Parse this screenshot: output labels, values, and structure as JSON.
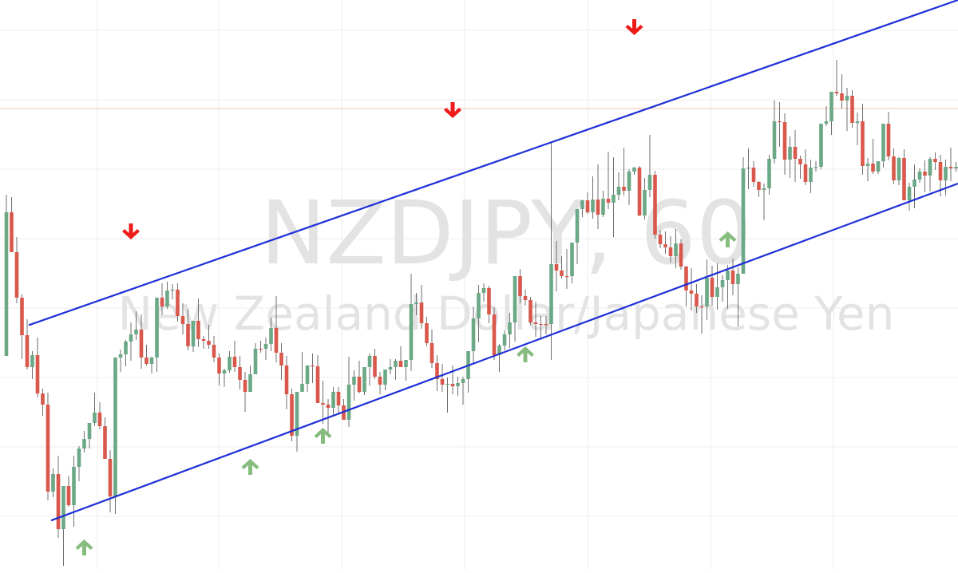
{
  "watermark": {
    "symbol_line": "NZDJPY, 60",
    "name_line": "New Zealand Dollar/Japanese Yen"
  },
  "chart_data": {
    "type": "candlestick",
    "symbol": "NZDJPY",
    "interval": "60",
    "grid": true,
    "colors": {
      "up": "#6aa886",
      "down": "#d9574b",
      "wick": "#6f6f6f",
      "channel": "#1f2fd6",
      "arrow_down": "#ee1b1b",
      "arrow_up": "#86bd7e",
      "price_line": "#f2c3b3",
      "grid": "#eeeeee",
      "watermark": "#e3e3e3"
    },
    "price_range": [
      0,
      714
    ],
    "bars": [
      {
        "o": 446,
        "h": 244,
        "l": 433,
        "c": 266
      },
      {
        "o": 266,
        "h": 247,
        "l": 316,
        "c": 316
      },
      {
        "o": 316,
        "h": 297,
        "l": 380,
        "c": 373
      },
      {
        "o": 373,
        "h": 369,
        "l": 450,
        "c": 420
      },
      {
        "o": 420,
        "h": 400,
        "l": 463,
        "c": 460
      },
      {
        "o": 460,
        "h": 440,
        "l": 475,
        "c": 445
      },
      {
        "o": 445,
        "h": 423,
        "l": 498,
        "c": 493
      },
      {
        "o": 493,
        "h": 487,
        "l": 521,
        "c": 507
      },
      {
        "o": 507,
        "h": 492,
        "l": 627,
        "c": 616
      },
      {
        "o": 616,
        "h": 587,
        "l": 623,
        "c": 594
      },
      {
        "o": 594,
        "h": 571,
        "l": 674,
        "c": 663
      },
      {
        "o": 663,
        "h": 648,
        "l": 709,
        "c": 609
      },
      {
        "o": 609,
        "h": 596,
        "l": 635,
        "c": 633
      },
      {
        "o": 633,
        "h": 571,
        "l": 660,
        "c": 585
      },
      {
        "o": 585,
        "h": 559,
        "l": 603,
        "c": 562
      },
      {
        "o": 562,
        "h": 540,
        "l": 567,
        "c": 550
      },
      {
        "o": 550,
        "h": 539,
        "l": 562,
        "c": 530
      },
      {
        "o": 530,
        "h": 492,
        "l": 534,
        "c": 517
      },
      {
        "o": 517,
        "h": 504,
        "l": 538,
        "c": 534
      },
      {
        "o": 534,
        "h": 523,
        "l": 573,
        "c": 575
      },
      {
        "o": 575,
        "h": 564,
        "l": 642,
        "c": 622
      },
      {
        "o": 622,
        "h": 565,
        "l": 644,
        "c": 448
      },
      {
        "o": 448,
        "h": 438,
        "l": 466,
        "c": 444
      },
      {
        "o": 444,
        "h": 426,
        "l": 459,
        "c": 428
      },
      {
        "o": 428,
        "h": 404,
        "l": 452,
        "c": 419
      },
      {
        "o": 419,
        "h": 390,
        "l": 426,
        "c": 413
      },
      {
        "o": 413,
        "h": 394,
        "l": 462,
        "c": 448
      },
      {
        "o": 448,
        "h": 432,
        "l": 458,
        "c": 456
      },
      {
        "o": 456,
        "h": 447,
        "l": 468,
        "c": 448
      },
      {
        "o": 448,
        "h": 375,
        "l": 466,
        "c": 373
      },
      {
        "o": 373,
        "h": 355,
        "l": 395,
        "c": 384
      },
      {
        "o": 384,
        "h": 353,
        "l": 387,
        "c": 364
      },
      {
        "o": 364,
        "h": 356,
        "l": 375,
        "c": 363
      },
      {
        "o": 363,
        "h": 355,
        "l": 403,
        "c": 396
      },
      {
        "o": 396,
        "h": 380,
        "l": 419,
        "c": 406
      },
      {
        "o": 406,
        "h": 387,
        "l": 439,
        "c": 434
      },
      {
        "o": 434,
        "h": 402,
        "l": 441,
        "c": 402
      },
      {
        "o": 402,
        "h": 374,
        "l": 435,
        "c": 425
      },
      {
        "o": 425,
        "h": 421,
        "l": 437,
        "c": 427
      },
      {
        "o": 427,
        "h": 407,
        "l": 437,
        "c": 432
      },
      {
        "o": 432,
        "h": 421,
        "l": 454,
        "c": 448
      },
      {
        "o": 448,
        "h": 443,
        "l": 483,
        "c": 468
      },
      {
        "o": 468,
        "h": 462,
        "l": 485,
        "c": 464
      },
      {
        "o": 464,
        "h": 440,
        "l": 467,
        "c": 447
      },
      {
        "o": 447,
        "h": 427,
        "l": 466,
        "c": 460
      },
      {
        "o": 460,
        "h": 446,
        "l": 488,
        "c": 476
      },
      {
        "o": 476,
        "h": 466,
        "l": 516,
        "c": 491
      },
      {
        "o": 491,
        "h": 458,
        "l": 491,
        "c": 469
      },
      {
        "o": 469,
        "h": 430,
        "l": 468,
        "c": 437
      },
      {
        "o": 437,
        "h": 427,
        "l": 442,
        "c": 437
      },
      {
        "o": 437,
        "h": 423,
        "l": 451,
        "c": 431
      },
      {
        "o": 431,
        "h": 398,
        "l": 440,
        "c": 411
      },
      {
        "o": 411,
        "h": 371,
        "l": 454,
        "c": 442
      },
      {
        "o": 442,
        "h": 430,
        "l": 476,
        "c": 458
      },
      {
        "o": 458,
        "h": 446,
        "l": 513,
        "c": 494
      },
      {
        "o": 494,
        "h": 487,
        "l": 553,
        "c": 546
      },
      {
        "o": 546,
        "h": 493,
        "l": 566,
        "c": 491
      },
      {
        "o": 491,
        "h": 441,
        "l": 491,
        "c": 481
      },
      {
        "o": 481,
        "h": 466,
        "l": 491,
        "c": 458
      },
      {
        "o": 458,
        "h": 443,
        "l": 480,
        "c": 459
      },
      {
        "o": 459,
        "h": 445,
        "l": 505,
        "c": 505
      },
      {
        "o": 505,
        "h": 477,
        "l": 531,
        "c": 507
      },
      {
        "o": 507,
        "h": 500,
        "l": 543,
        "c": 511
      },
      {
        "o": 511,
        "h": 485,
        "l": 521,
        "c": 491
      },
      {
        "o": 491,
        "h": 485,
        "l": 519,
        "c": 508
      },
      {
        "o": 508,
        "h": 500,
        "l": 526,
        "c": 526
      },
      {
        "o": 526,
        "h": 447,
        "l": 535,
        "c": 482
      },
      {
        "o": 482,
        "h": 464,
        "l": 502,
        "c": 472
      },
      {
        "o": 472,
        "h": 452,
        "l": 493,
        "c": 491
      },
      {
        "o": 491,
        "h": 466,
        "l": 495,
        "c": 460
      },
      {
        "o": 460,
        "h": 443,
        "l": 483,
        "c": 446
      },
      {
        "o": 446,
        "h": 437,
        "l": 475,
        "c": 472
      },
      {
        "o": 472,
        "h": 466,
        "l": 494,
        "c": 482
      },
      {
        "o": 482,
        "h": 478,
        "l": 489,
        "c": 463
      },
      {
        "o": 463,
        "h": 450,
        "l": 469,
        "c": 460
      },
      {
        "o": 460,
        "h": 450,
        "l": 476,
        "c": 452
      },
      {
        "o": 452,
        "h": 434,
        "l": 459,
        "c": 460
      },
      {
        "o": 460,
        "h": 455,
        "l": 477,
        "c": 451
      },
      {
        "o": 451,
        "h": 343,
        "l": 465,
        "c": 381
      },
      {
        "o": 381,
        "h": 367,
        "l": 395,
        "c": 379
      },
      {
        "o": 379,
        "h": 357,
        "l": 412,
        "c": 405
      },
      {
        "o": 405,
        "h": 397,
        "l": 434,
        "c": 430
      },
      {
        "o": 430,
        "h": 413,
        "l": 461,
        "c": 455
      },
      {
        "o": 455,
        "h": 445,
        "l": 490,
        "c": 475
      },
      {
        "o": 475,
        "h": 456,
        "l": 491,
        "c": 482
      },
      {
        "o": 482,
        "h": 473,
        "l": 517,
        "c": 481
      },
      {
        "o": 481,
        "h": 458,
        "l": 494,
        "c": 484
      },
      {
        "o": 484,
        "h": 472,
        "l": 496,
        "c": 480
      },
      {
        "o": 480,
        "h": 472,
        "l": 507,
        "c": 475
      },
      {
        "o": 475,
        "h": 460,
        "l": 492,
        "c": 440
      },
      {
        "o": 440,
        "h": 384,
        "l": 455,
        "c": 399
      },
      {
        "o": 399,
        "h": 357,
        "l": 429,
        "c": 367
      },
      {
        "o": 367,
        "h": 355,
        "l": 378,
        "c": 361
      },
      {
        "o": 361,
        "h": 358,
        "l": 405,
        "c": 394
      },
      {
        "o": 394,
        "h": 385,
        "l": 451,
        "c": 445
      },
      {
        "o": 445,
        "h": 431,
        "l": 466,
        "c": 433
      },
      {
        "o": 433,
        "h": 414,
        "l": 439,
        "c": 419
      },
      {
        "o": 419,
        "h": 392,
        "l": 436,
        "c": 404
      },
      {
        "o": 404,
        "h": 348,
        "l": 428,
        "c": 346
      },
      {
        "o": 346,
        "h": 337,
        "l": 380,
        "c": 371
      },
      {
        "o": 371,
        "h": 363,
        "l": 383,
        "c": 376
      },
      {
        "o": 376,
        "h": 372,
        "l": 407,
        "c": 404
      },
      {
        "o": 404,
        "h": 378,
        "l": 422,
        "c": 406
      },
      {
        "o": 406,
        "h": 396,
        "l": 426,
        "c": 406
      },
      {
        "o": 406,
        "h": 396,
        "l": 419,
        "c": 406
      },
      {
        "o": 406,
        "h": 178,
        "l": 451,
        "c": 331
      },
      {
        "o": 331,
        "h": 302,
        "l": 365,
        "c": 339
      },
      {
        "o": 339,
        "h": 321,
        "l": 349,
        "c": 346
      },
      {
        "o": 346,
        "h": 312,
        "l": 362,
        "c": 346
      },
      {
        "o": 346,
        "h": 327,
        "l": 355,
        "c": 304
      },
      {
        "o": 304,
        "h": 272,
        "l": 331,
        "c": 262
      },
      {
        "o": 262,
        "h": 251,
        "l": 272,
        "c": 251
      },
      {
        "o": 251,
        "h": 241,
        "l": 268,
        "c": 266
      },
      {
        "o": 266,
        "h": 221,
        "l": 274,
        "c": 250
      },
      {
        "o": 250,
        "h": 206,
        "l": 287,
        "c": 269
      },
      {
        "o": 269,
        "h": 239,
        "l": 272,
        "c": 249
      },
      {
        "o": 249,
        "h": 190,
        "l": 262,
        "c": 254
      },
      {
        "o": 254,
        "h": 197,
        "l": 297,
        "c": 244
      },
      {
        "o": 244,
        "h": 216,
        "l": 251,
        "c": 234
      },
      {
        "o": 234,
        "h": 185,
        "l": 245,
        "c": 239
      },
      {
        "o": 239,
        "h": 212,
        "l": 257,
        "c": 215
      },
      {
        "o": 215,
        "h": 209,
        "l": 219,
        "c": 210
      },
      {
        "o": 210,
        "h": 208,
        "l": 271,
        "c": 270
      },
      {
        "o": 270,
        "h": 223,
        "l": 275,
        "c": 238
      },
      {
        "o": 238,
        "h": 169,
        "l": 247,
        "c": 219
      },
      {
        "o": 219,
        "h": 214,
        "l": 299,
        "c": 294
      },
      {
        "o": 294,
        "h": 288,
        "l": 311,
        "c": 306
      },
      {
        "o": 306,
        "h": 290,
        "l": 318,
        "c": 310
      },
      {
        "o": 310,
        "h": 296,
        "l": 329,
        "c": 321
      },
      {
        "o": 321,
        "h": 287,
        "l": 336,
        "c": 305
      },
      {
        "o": 305,
        "h": 300,
        "l": 338,
        "c": 334
      },
      {
        "o": 334,
        "h": 333,
        "l": 384,
        "c": 364
      },
      {
        "o": 364,
        "h": 336,
        "l": 389,
        "c": 368
      },
      {
        "o": 368,
        "h": 356,
        "l": 392,
        "c": 384
      },
      {
        "o": 384,
        "h": 370,
        "l": 418,
        "c": 384
      },
      {
        "o": 384,
        "h": 325,
        "l": 401,
        "c": 348
      },
      {
        "o": 348,
        "h": 333,
        "l": 383,
        "c": 372
      },
      {
        "o": 372,
        "h": 330,
        "l": 388,
        "c": 360
      },
      {
        "o": 360,
        "h": 345,
        "l": 378,
        "c": 351
      },
      {
        "o": 351,
        "h": 332,
        "l": 387,
        "c": 339
      },
      {
        "o": 339,
        "h": 324,
        "l": 370,
        "c": 356
      },
      {
        "o": 356,
        "h": 335,
        "l": 409,
        "c": 343
      },
      {
        "o": 343,
        "h": 197,
        "l": 337,
        "c": 211
      },
      {
        "o": 211,
        "h": 186,
        "l": 237,
        "c": 210
      },
      {
        "o": 210,
        "h": 202,
        "l": 234,
        "c": 228
      },
      {
        "o": 228,
        "h": 227,
        "l": 247,
        "c": 238
      },
      {
        "o": 238,
        "h": 230,
        "l": 276,
        "c": 236
      },
      {
        "o": 236,
        "h": 194,
        "l": 244,
        "c": 199
      },
      {
        "o": 199,
        "h": 126,
        "l": 205,
        "c": 152
      },
      {
        "o": 152,
        "h": 128,
        "l": 184,
        "c": 153
      },
      {
        "o": 153,
        "h": 142,
        "l": 219,
        "c": 200
      },
      {
        "o": 200,
        "h": 171,
        "l": 223,
        "c": 184
      },
      {
        "o": 184,
        "h": 163,
        "l": 228,
        "c": 199
      },
      {
        "o": 199,
        "h": 195,
        "l": 224,
        "c": 206
      },
      {
        "o": 206,
        "h": 187,
        "l": 232,
        "c": 228
      },
      {
        "o": 228,
        "h": 200,
        "l": 242,
        "c": 210
      },
      {
        "o": 210,
        "h": 202,
        "l": 215,
        "c": 209
      },
      {
        "o": 209,
        "h": 161,
        "l": 212,
        "c": 155
      },
      {
        "o": 155,
        "h": 133,
        "l": 158,
        "c": 152
      },
      {
        "o": 152,
        "h": 133,
        "l": 169,
        "c": 115
      },
      {
        "o": 115,
        "h": 75,
        "l": 120,
        "c": 117
      },
      {
        "o": 117,
        "h": 93,
        "l": 136,
        "c": 126
      },
      {
        "o": 126,
        "h": 110,
        "l": 164,
        "c": 120
      },
      {
        "o": 120,
        "h": 113,
        "l": 160,
        "c": 154
      },
      {
        "o": 154,
        "h": 141,
        "l": 182,
        "c": 152
      },
      {
        "o": 152,
        "h": 130,
        "l": 219,
        "c": 208
      },
      {
        "o": 208,
        "h": 198,
        "l": 227,
        "c": 205
      },
      {
        "o": 205,
        "h": 174,
        "l": 218,
        "c": 215
      },
      {
        "o": 215,
        "h": 204,
        "l": 218,
        "c": 202
      },
      {
        "o": 202,
        "h": 168,
        "l": 210,
        "c": 155
      },
      {
        "o": 155,
        "h": 140,
        "l": 201,
        "c": 196
      },
      {
        "o": 196,
        "h": 186,
        "l": 231,
        "c": 226
      },
      {
        "o": 226,
        "h": 197,
        "l": 232,
        "c": 198
      },
      {
        "o": 198,
        "h": 187,
        "l": 250,
        "c": 251
      },
      {
        "o": 251,
        "h": 229,
        "l": 264,
        "c": 234
      },
      {
        "o": 234,
        "h": 206,
        "l": 261,
        "c": 225
      },
      {
        "o": 225,
        "h": 211,
        "l": 229,
        "c": 215
      },
      {
        "o": 215,
        "h": 201,
        "l": 241,
        "c": 220
      },
      {
        "o": 220,
        "h": 197,
        "l": 240,
        "c": 199
      },
      {
        "o": 199,
        "h": 191,
        "l": 213,
        "c": 203
      },
      {
        "o": 203,
        "h": 194,
        "l": 246,
        "c": 226
      },
      {
        "o": 226,
        "h": 200,
        "l": 245,
        "c": 209
      },
      {
        "o": 209,
        "h": 185,
        "l": 227,
        "c": 211
      },
      {
        "o": 211,
        "h": 203,
        "l": 215,
        "c": 209
      },
      {
        "o": 209,
        "h": 196,
        "l": 234,
        "c": 186
      },
      {
        "o": 186,
        "h": 172,
        "l": 206,
        "c": 180
      },
      {
        "o": 180,
        "h": 169,
        "l": 197,
        "c": 174
      },
      {
        "o": 174,
        "h": 157,
        "l": 190,
        "c": 173
      },
      {
        "o": 173,
        "h": 136,
        "l": 177,
        "c": 165
      },
      {
        "o": 165,
        "h": 140,
        "l": 173,
        "c": 148
      },
      {
        "o": 148,
        "h": 133,
        "l": 170,
        "c": 163
      },
      {
        "o": 163,
        "h": 133,
        "l": 181,
        "c": 150
      },
      {
        "o": 150,
        "h": 140,
        "l": 166,
        "c": 163
      },
      {
        "o": 163,
        "h": 147,
        "l": 178,
        "c": 167
      }
    ],
    "channel": {
      "upper": {
        "start": [
          0,
          420
        ],
        "end": [
          1200,
          0
        ]
      },
      "lower": {
        "start": [
          0,
          676
        ],
        "end": [
          1200,
          230
        ]
      }
    },
    "reference_line": 136,
    "pivot_arrows": [
      {
        "bar_index": 24,
        "direction": "down",
        "price": 300
      },
      {
        "bar_index": 86,
        "direction": "down",
        "price": 148
      },
      {
        "bar_index": 121,
        "direction": "down",
        "price": 44
      },
      {
        "bar_index": 15,
        "direction": "up",
        "price": 676
      },
      {
        "bar_index": 47,
        "direction": "up",
        "price": 575
      },
      {
        "bar_index": 61,
        "direction": "up",
        "price": 536
      },
      {
        "bar_index": 100,
        "direction": "up",
        "price": 434
      },
      {
        "bar_index": 139,
        "direction": "up",
        "price": 290
      }
    ]
  }
}
